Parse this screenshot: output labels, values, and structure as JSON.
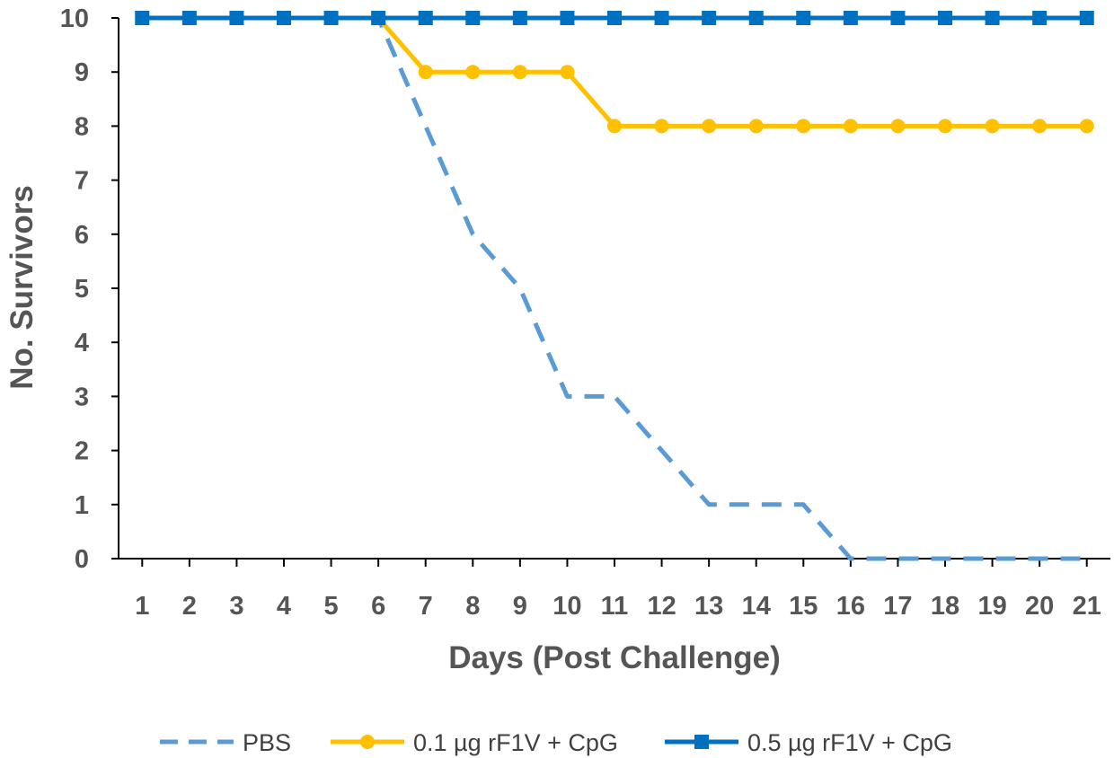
{
  "chart_data": {
    "type": "line",
    "xlabel": "Days (Post Challenge)",
    "ylabel": "No. Survivors",
    "categories": [
      "1",
      "2",
      "3",
      "4",
      "5",
      "6",
      "7",
      "8",
      "9",
      "10",
      "11",
      "12",
      "13",
      "14",
      "15",
      "16",
      "17",
      "18",
      "19",
      "20",
      "21"
    ],
    "ylim": [
      0,
      10
    ],
    "yticks": [
      "0",
      "1",
      "2",
      "3",
      "4",
      "5",
      "6",
      "7",
      "8",
      "9",
      "10"
    ],
    "grid": false,
    "legend_position": "bottom",
    "series": [
      {
        "name": "PBS",
        "color": "#5B9BD5",
        "style": "dashed",
        "marker": "none",
        "values": [
          10,
          10,
          10,
          10,
          10,
          10,
          8,
          6,
          5,
          3,
          3,
          2,
          1,
          1,
          1,
          0,
          0,
          0,
          0,
          0,
          0
        ]
      },
      {
        "name": "0.1 µg rF1V + CpG",
        "color": "#FFC000",
        "style": "solid",
        "marker": "circle",
        "values": [
          10,
          10,
          10,
          10,
          10,
          10,
          9,
          9,
          9,
          9,
          8,
          8,
          8,
          8,
          8,
          8,
          8,
          8,
          8,
          8,
          8
        ]
      },
      {
        "name": "0.5 µg rF1V + CpG",
        "color": "#0070C0",
        "style": "solid",
        "marker": "square",
        "values": [
          10,
          10,
          10,
          10,
          10,
          10,
          10,
          10,
          10,
          10,
          10,
          10,
          10,
          10,
          10,
          10,
          10,
          10,
          10,
          10,
          10
        ]
      }
    ]
  }
}
